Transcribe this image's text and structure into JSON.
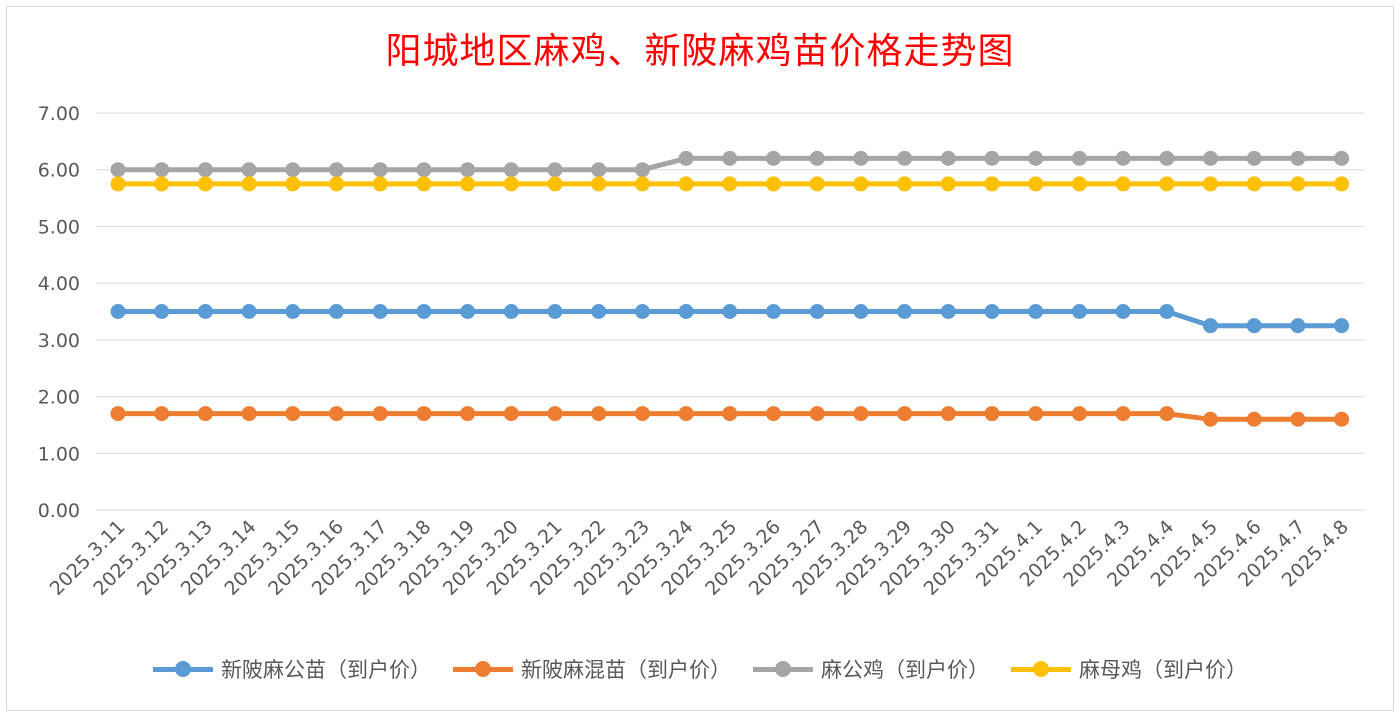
{
  "chart_data": {
    "type": "line",
    "title": "阳城地区麻鸡、新陂麻鸡苗价格走势图",
    "xlabel": "",
    "ylabel": "",
    "ylim": [
      0,
      7
    ],
    "yticks": [
      "0.00",
      "1.00",
      "2.00",
      "3.00",
      "4.00",
      "5.00",
      "6.00",
      "7.00"
    ],
    "grid": true,
    "legend_position": "bottom",
    "categories": [
      "2025.3.11",
      "2025.3.12",
      "2025.3.13",
      "2025.3.14",
      "2025.3.15",
      "2025.3.16",
      "2025.3.17",
      "2025.3.18",
      "2025.3.19",
      "2025.3.20",
      "2025.3.21",
      "2025.3.22",
      "2025.3.23",
      "2025.3.24",
      "2025.3.25",
      "2025.3.26",
      "2025.3.27",
      "2025.3.28",
      "2025.3.29",
      "2025.3.30",
      "2025.3.31",
      "2025.4.1",
      "2025.4.2",
      "2025.4.3",
      "2025.4.4",
      "2025.4.5",
      "2025.4.6",
      "2025.4.7",
      "2025.4.8"
    ],
    "series": [
      {
        "name": "新陂麻公苗（到户价）",
        "color": "#5b9bd5",
        "values": [
          3.5,
          3.5,
          3.5,
          3.5,
          3.5,
          3.5,
          3.5,
          3.5,
          3.5,
          3.5,
          3.5,
          3.5,
          3.5,
          3.5,
          3.5,
          3.5,
          3.5,
          3.5,
          3.5,
          3.5,
          3.5,
          3.5,
          3.5,
          3.5,
          3.5,
          3.25,
          3.25,
          3.25,
          3.25
        ]
      },
      {
        "name": "新陂麻混苗（到户价）",
        "color": "#ed7d31",
        "values": [
          1.7,
          1.7,
          1.7,
          1.7,
          1.7,
          1.7,
          1.7,
          1.7,
          1.7,
          1.7,
          1.7,
          1.7,
          1.7,
          1.7,
          1.7,
          1.7,
          1.7,
          1.7,
          1.7,
          1.7,
          1.7,
          1.7,
          1.7,
          1.7,
          1.7,
          1.6,
          1.6,
          1.6,
          1.6
        ]
      },
      {
        "name": "麻公鸡（到户价）",
        "color": "#a5a5a5",
        "values": [
          6.0,
          6.0,
          6.0,
          6.0,
          6.0,
          6.0,
          6.0,
          6.0,
          6.0,
          6.0,
          6.0,
          6.0,
          6.0,
          6.2,
          6.2,
          6.2,
          6.2,
          6.2,
          6.2,
          6.2,
          6.2,
          6.2,
          6.2,
          6.2,
          6.2,
          6.2,
          6.2,
          6.2,
          6.2
        ]
      },
      {
        "name": "麻母鸡（到户价）",
        "color": "#ffc000",
        "values": [
          5.75,
          5.75,
          5.75,
          5.75,
          5.75,
          5.75,
          5.75,
          5.75,
          5.75,
          5.75,
          5.75,
          5.75,
          5.75,
          5.75,
          5.75,
          5.75,
          5.75,
          5.75,
          5.75,
          5.75,
          5.75,
          5.75,
          5.75,
          5.75,
          5.75,
          5.75,
          5.75,
          5.75,
          5.75
        ]
      }
    ]
  }
}
